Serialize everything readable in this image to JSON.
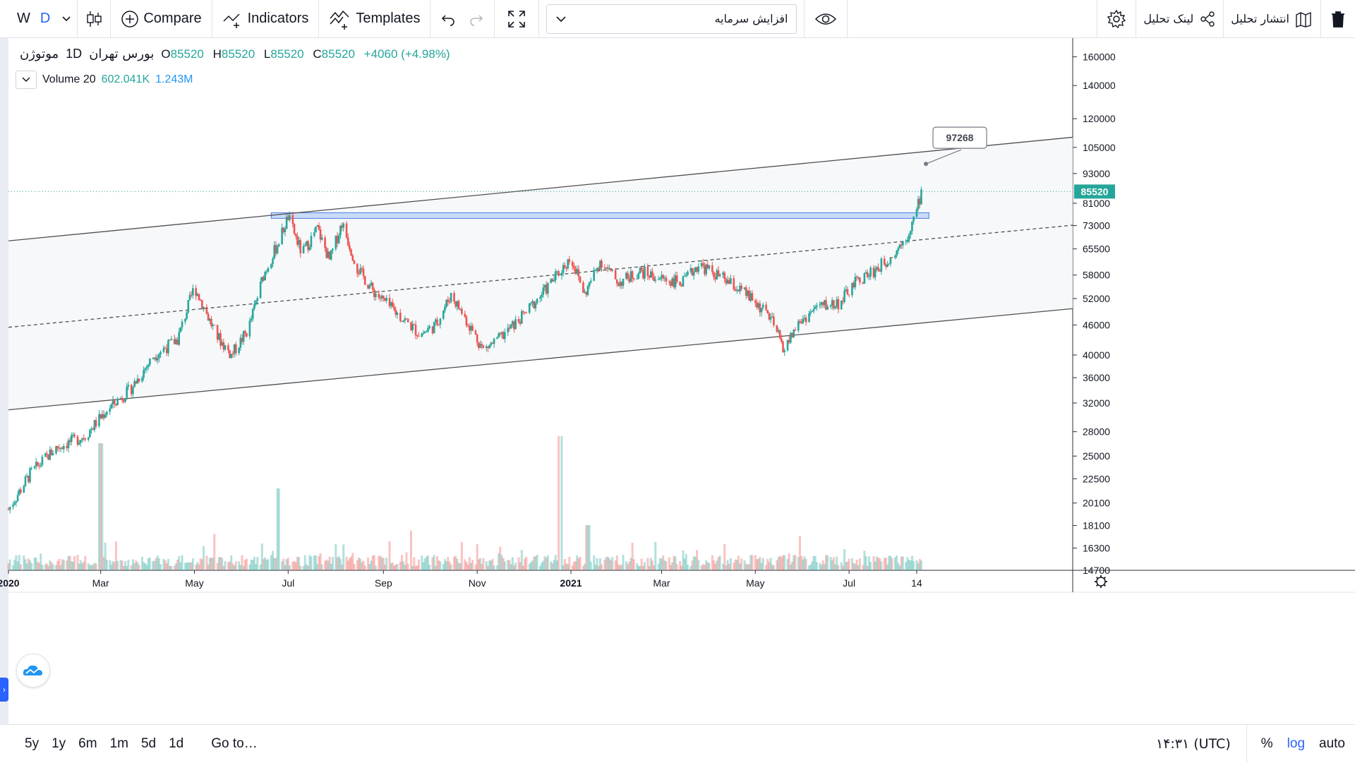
{
  "toolbar": {
    "interval_w": "W",
    "interval_d": "D",
    "compare_label": "Compare",
    "indicators_label": "Indicators",
    "templates_label": "Templates",
    "symbol_search_value": "افزایش سرمایه",
    "publish_label": "انتشار تحلیل",
    "share_label": "لینک تحلیل"
  },
  "legend": {
    "symbol": "موتوژن",
    "interval": "1D",
    "exchange": "بورس تهران",
    "open_label": "O",
    "open": "85520",
    "high_label": "H",
    "high": "85520",
    "low_label": "L",
    "low": "85520",
    "close_label": "C",
    "close": "85520",
    "change": "+4060 (+4.98%)",
    "volume_label": "Volume 20",
    "volume_value": "602.041K",
    "volume_ma": "1.243M"
  },
  "bottom": {
    "ranges": [
      "5y",
      "1y",
      "6m",
      "1m",
      "5d",
      "1d"
    ],
    "goto_label": "Go to…",
    "clock": "۱۴:۳۱ (UTC)",
    "percent_label": "%",
    "log_label": "log",
    "auto_label": "auto"
  },
  "colors": {
    "up": "#26a69a",
    "down": "#ef5350",
    "accent": "#2962ff",
    "last_price": "#26a69a"
  },
  "chart_data": {
    "type": "candlestick",
    "scale": "log",
    "y_ticks": [
      14700,
      16300,
      18100,
      20100,
      22500,
      25000,
      28000,
      32000,
      36000,
      40000,
      46000,
      52000,
      58000,
      65500,
      73000,
      81000,
      93000,
      105000,
      120000,
      140000,
      160000
    ],
    "x_ticks": [
      {
        "label": "2020",
        "date": "2020-01-01",
        "bold": true
      },
      {
        "label": "Mar",
        "date": "2020-03-01"
      },
      {
        "label": "May",
        "date": "2020-05-01"
      },
      {
        "label": "Jul",
        "date": "2020-07-01"
      },
      {
        "label": "Sep",
        "date": "2020-09-01"
      },
      {
        "label": "Nov",
        "date": "2020-11-01"
      },
      {
        "label": "2021",
        "date": "2021-01-01",
        "bold": true
      },
      {
        "label": "Mar",
        "date": "2021-03-01"
      },
      {
        "label": "May",
        "date": "2021-05-01"
      },
      {
        "label": "Jul",
        "date": "2021-07-01"
      },
      {
        "label": "14",
        "date": "2021-08-14"
      }
    ],
    "date_range": [
      "2020-01-01",
      "2021-08-20"
    ],
    "last_price": 85520,
    "price_path": [
      [
        "2020-01-01",
        19500
      ],
      [
        "2020-01-15",
        23000
      ],
      [
        "2020-02-01",
        26000
      ],
      [
        "2020-02-20",
        27500
      ],
      [
        "2020-03-05",
        31000
      ],
      [
        "2020-03-20",
        34000
      ],
      [
        "2020-04-05",
        40000
      ],
      [
        "2020-04-20",
        43000
      ],
      [
        "2020-05-01",
        55000
      ],
      [
        "2020-05-15",
        44000
      ],
      [
        "2020-05-25",
        40000
      ],
      [
        "2020-06-05",
        45000
      ],
      [
        "2020-06-15",
        58000
      ],
      [
        "2020-06-25",
        68000
      ],
      [
        "2020-07-01",
        76000
      ],
      [
        "2020-07-10",
        64000
      ],
      [
        "2020-07-20",
        72000
      ],
      [
        "2020-07-28",
        62000
      ],
      [
        "2020-08-05",
        74000
      ],
      [
        "2020-08-15",
        60000
      ],
      [
        "2020-08-25",
        54000
      ],
      [
        "2020-09-05",
        50000
      ],
      [
        "2020-09-15",
        47000
      ],
      [
        "2020-09-25",
        44000
      ],
      [
        "2020-10-05",
        46000
      ],
      [
        "2020-10-15",
        53000
      ],
      [
        "2020-10-25",
        47000
      ],
      [
        "2020-11-05",
        41000
      ],
      [
        "2020-11-15",
        43000
      ],
      [
        "2020-12-01",
        48000
      ],
      [
        "2020-12-15",
        54000
      ],
      [
        "2021-01-01",
        63000
      ],
      [
        "2021-01-10",
        53000
      ],
      [
        "2021-01-20",
        62000
      ],
      [
        "2021-02-01",
        56000
      ],
      [
        "2021-02-15",
        59000
      ],
      [
        "2021-03-01",
        57000
      ],
      [
        "2021-03-15",
        56000
      ],
      [
        "2021-03-25",
        61000
      ],
      [
        "2021-04-10",
        57000
      ],
      [
        "2021-04-25",
        53000
      ],
      [
        "2021-05-10",
        48000
      ],
      [
        "2021-05-20",
        41000
      ],
      [
        "2021-05-28",
        46000
      ],
      [
        "2021-06-10",
        50000
      ],
      [
        "2021-06-25",
        51000
      ],
      [
        "2021-07-05",
        56000
      ],
      [
        "2021-07-20",
        60000
      ],
      [
        "2021-07-30",
        64000
      ],
      [
        "2021-08-08",
        70000
      ],
      [
        "2021-08-14",
        78000
      ],
      [
        "2021-08-17",
        85520
      ]
    ],
    "trendlines": [
      {
        "name": "upper-channel",
        "style": "solid",
        "from": [
          "2020-01-01",
          68000
        ],
        "to": [
          "2021-08-20",
          103000
        ]
      },
      {
        "name": "middle-channel",
        "style": "dashed",
        "from": [
          "2020-01-01",
          45500
        ],
        "to": [
          "2021-08-20",
          68500
        ]
      },
      {
        "name": "lower-channel",
        "style": "solid",
        "from": [
          "2020-01-01",
          31000
        ],
        "to": [
          "2021-08-20",
          46500
        ]
      }
    ],
    "resistance_zone": {
      "from": "2020-06-20",
      "to": "2021-08-22",
      "price_low": 75500,
      "price_high": 77500
    },
    "callout": {
      "label": "97268",
      "date": "2021-08-20",
      "price": 97268
    },
    "volume_spikes": [
      {
        "date": "2020-03-01",
        "rel": 0.9
      },
      {
        "date": "2020-06-25",
        "rel": 0.58
      },
      {
        "date": "2020-12-25",
        "rel": 0.95
      },
      {
        "date": "2021-01-12",
        "rel": 0.32
      }
    ]
  }
}
